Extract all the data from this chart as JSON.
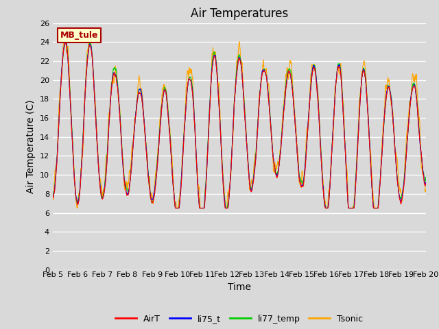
{
  "title": "Air Temperatures",
  "xlabel": "Time",
  "ylabel": "Air Temperature (C)",
  "ylim": [
    0,
    26
  ],
  "yticks": [
    0,
    2,
    4,
    6,
    8,
    10,
    12,
    14,
    16,
    18,
    20,
    22,
    24,
    26
  ],
  "series_labels": [
    "AirT",
    "li75_t",
    "li77_temp",
    "Tsonic"
  ],
  "series_colors": [
    "#ff0000",
    "#0000ff",
    "#00cc00",
    "#ffa500"
  ],
  "line_width": 0.8,
  "annotation_text": "MB_tule",
  "annotation_bbox_facecolor": "#ffffcc",
  "annotation_bbox_edgecolor": "#aa0000",
  "background_color": "#d9d9d9",
  "plot_bg_color": "#d9d9d9",
  "title_fontsize": 12,
  "axis_label_fontsize": 10,
  "tick_label_fontsize": 8,
  "legend_fontsize": 9,
  "grid_color": "#ffffff",
  "xticklabels": [
    "Feb 5",
    "Feb 6",
    "Feb 7",
    "Feb 8",
    "Feb 9",
    "Feb 10",
    "Feb 11",
    "Feb 12",
    "Feb 13",
    "Feb 14",
    "Feb 15",
    "Feb 16",
    "Feb 17",
    "Feb 18",
    "Feb 19",
    "Feb 20"
  ],
  "n_points": 1440
}
